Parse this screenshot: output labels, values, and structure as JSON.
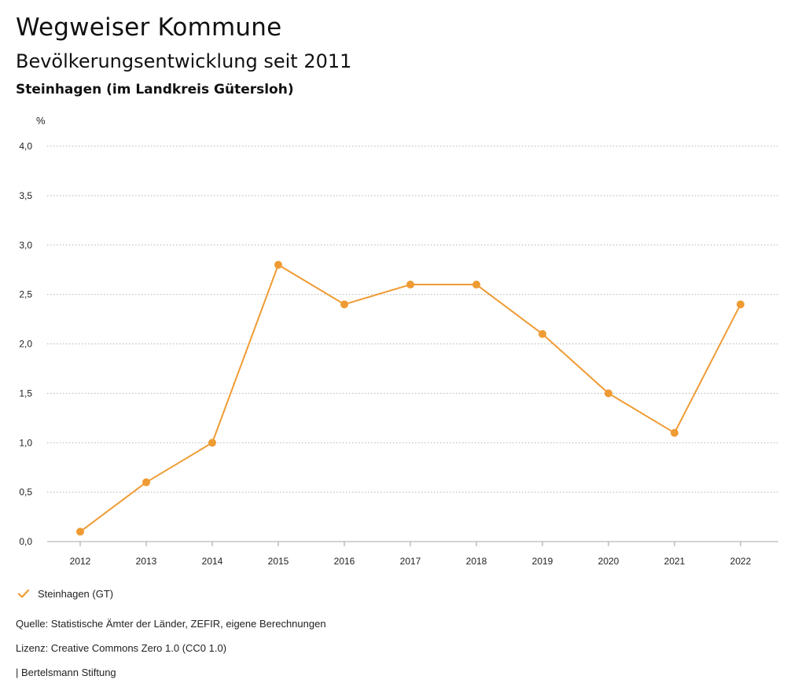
{
  "header": {
    "title": "Wegweiser Kommune",
    "subtitle": "Bevölkerungsentwicklung seit 2011",
    "region": "Steinhagen (im Landkreis Gütersloh)"
  },
  "chart_data": {
    "type": "line",
    "unit": "%",
    "categories": [
      "2012",
      "2013",
      "2014",
      "2015",
      "2016",
      "2017",
      "2018",
      "2019",
      "2020",
      "2021",
      "2022"
    ],
    "series": [
      {
        "name": "Steinhagen (GT)",
        "values": [
          0.1,
          0.6,
          1.0,
          2.8,
          2.4,
          2.6,
          2.6,
          2.1,
          1.5,
          1.1,
          2.4
        ],
        "color": "#ef9b34"
      }
    ],
    "ylim": [
      0,
      4
    ],
    "yticks": [
      "0,0",
      "0,5",
      "1,0",
      "1,5",
      "2,0",
      "2,5",
      "3,0",
      "3,5",
      "4,0"
    ],
    "grid": true,
    "legend": "bottom-left"
  },
  "legend": {
    "label": "Steinhagen (GT)",
    "icon": "check-icon",
    "color": "#ef9b34"
  },
  "footer": {
    "source": "Quelle: Statistische Ämter der Länder, ZEFIR, eigene Berechnungen",
    "license": "Lizenz: Creative Commons Zero 1.0 (CC0 1.0)",
    "publisher": "| Bertelsmann Stiftung"
  }
}
